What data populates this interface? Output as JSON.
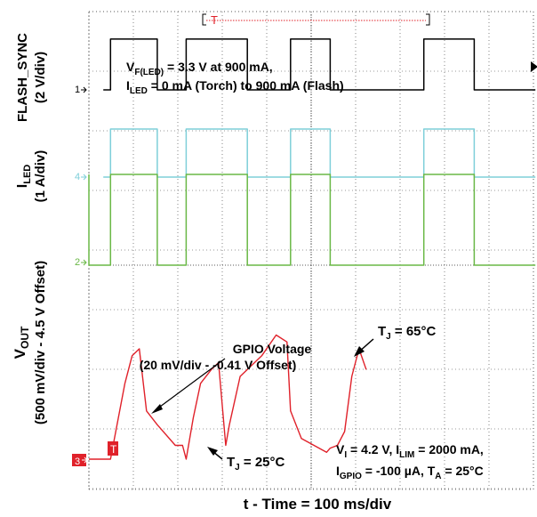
{
  "chart_data": {
    "type": "line",
    "title": "",
    "xlabel": "t - Time = 100 ms/div",
    "x_div_ms": 100,
    "grid": true,
    "trigger_marker": "T",
    "channels": [
      {
        "id": "1",
        "name": "FLASH_SYNC",
        "scale": "(2 V/div)",
        "color": "#000000"
      },
      {
        "id": "4",
        "name": "I",
        "name_sub": "LED",
        "scale": "(1 A/div)",
        "color": "#7ecfd9"
      },
      {
        "id": "2",
        "name": "V",
        "name_sub": "OUT",
        "scale": "(500 mV/div - 4.5 V Offset)",
        "color": "#6ab846"
      },
      {
        "id": "3",
        "name": "GPIO Voltage",
        "scale": "(20 mV/div - -0.41 V Offset)",
        "color": "#e0212a"
      }
    ],
    "series": [
      {
        "name": "FLASH_SYNC",
        "channel": "1",
        "x_ms": [
          0,
          10,
          10,
          75,
          75,
          115,
          115,
          200,
          200,
          260,
          260,
          315,
          315,
          445,
          445,
          515,
          515,
          600
        ],
        "y_v": [
          0,
          0,
          3.3,
          3.3,
          0,
          0,
          3.3,
          3.3,
          0,
          0,
          3.3,
          3.3,
          0,
          0,
          3.3,
          3.3,
          0,
          0
        ]
      },
      {
        "name": "ILED",
        "channel": "4",
        "x_ms": [
          0,
          10,
          10,
          75,
          75,
          115,
          115,
          200,
          200,
          260,
          260,
          315,
          315,
          445,
          445,
          515,
          515,
          600
        ],
        "y_a": [
          0,
          0,
          0.9,
          0.9,
          0,
          0,
          0.9,
          0.9,
          0,
          0,
          0.9,
          0.9,
          0,
          0,
          0.9,
          0.9,
          0,
          0
        ]
      },
      {
        "name": "VOUT",
        "channel": "2",
        "x_ms": [
          -20,
          -20,
          10,
          10,
          75,
          75,
          115,
          115,
          200,
          200,
          260,
          260,
          315,
          315,
          445,
          445,
          515,
          515,
          600
        ],
        "y_v": [
          3.35,
          4.5,
          4.5,
          3.35,
          3.35,
          4.5,
          4.5,
          3.35,
          3.35,
          4.5,
          4.5,
          3.35,
          3.35,
          4.5,
          4.5,
          3.35,
          3.35,
          4.5,
          4.5
        ]
      },
      {
        "name": "GPIO Voltage",
        "channel": "3",
        "x_ms": [
          -20,
          0,
          10,
          30,
          40,
          50,
          60,
          75,
          100,
          110,
          115,
          125,
          135,
          150,
          160,
          170,
          175,
          190,
          220,
          240,
          255,
          260,
          275,
          310,
          315,
          325,
          335,
          345,
          355,
          365
        ],
        "y_mv": [
          -410,
          -410,
          -410,
          -355,
          -335,
          -330,
          -375,
          -385,
          -400,
          -400,
          -410,
          -380,
          -355,
          -345,
          -340,
          -400,
          -385,
          -350,
          -335,
          -320,
          -325,
          -375,
          -395,
          -405,
          -402,
          -400,
          -390,
          -350,
          -330,
          -345
        ]
      }
    ],
    "annotations": [
      {
        "text": "V",
        "sub": "F(LED)",
        "tail": " = 3.3 V at 900 mA,"
      },
      {
        "text": "I",
        "sub": "LED",
        "tail": " = 0 mA (Torch) to 900 mA (Flash)"
      },
      {
        "text": "T",
        "sub": "J",
        "tail": " = 65°C"
      },
      {
        "text": "T",
        "sub": "J",
        "tail": " = 25°C"
      },
      {
        "text": "V",
        "sub": "I",
        "tail": " = 4.2 V, I",
        "sub2": "LIM",
        "tail2": " = 2000 mA,"
      },
      {
        "text": "I",
        "sub": "GPIO",
        "tail": " = -100 µA, T",
        "sub2": "A",
        "tail2": " = 25°C"
      }
    ]
  }
}
